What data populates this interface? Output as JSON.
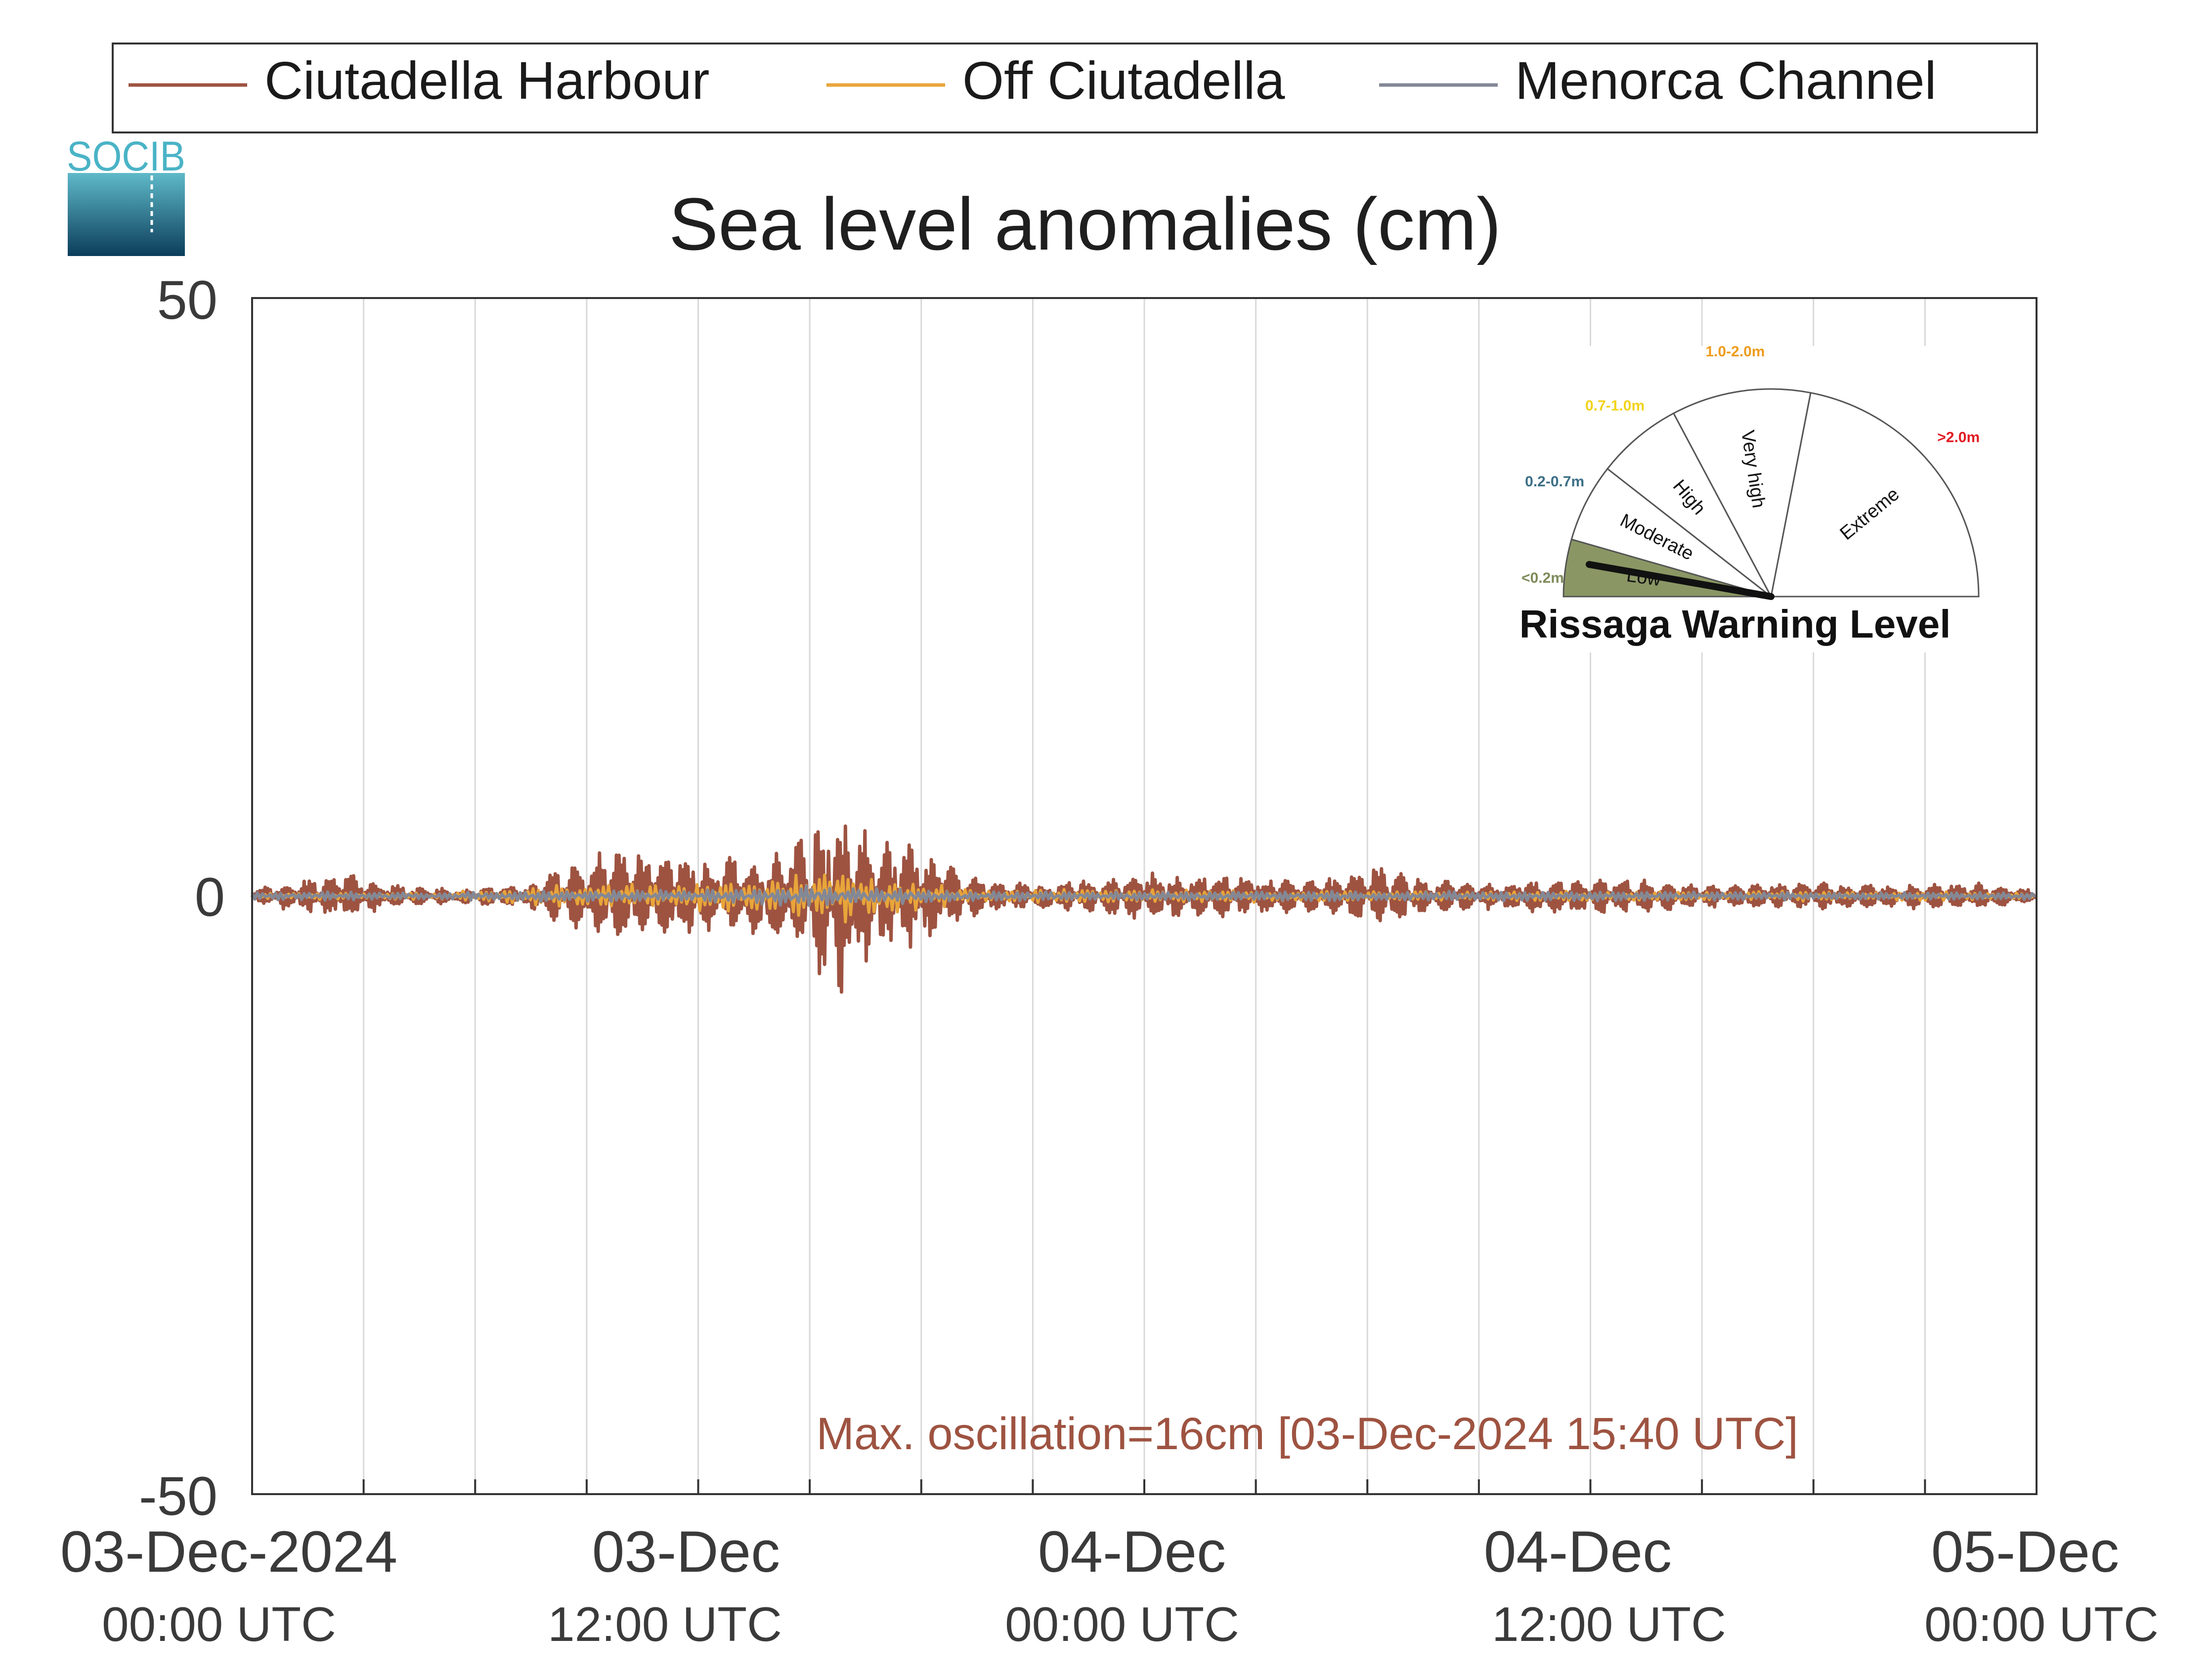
{
  "logo": {
    "text": "SOCIB"
  },
  "legend": {
    "placement": "top",
    "entries": [
      {
        "label": "Ciutadella Harbour",
        "color": "#9e5341"
      },
      {
        "label": "Off Ciutadella",
        "color": "#e8a53a"
      },
      {
        "label": "Menorca Channel",
        "color": "#838896"
      }
    ]
  },
  "chart_data": {
    "type": "line",
    "title": "Sea level anomalies (cm)",
    "xlabel": "",
    "ylabel": "",
    "ylim": [
      -50,
      50
    ],
    "y_ticks": [
      "50",
      "0",
      "-50"
    ],
    "xlim": [
      "2024-12-03 00:00 UTC",
      "2024-12-05 00:00 UTC"
    ],
    "x_ticks": [
      {
        "line1": "03-Dec-2024",
        "line2": "00:00 UTC"
      },
      {
        "line1": "03-Dec",
        "line2": "12:00 UTC"
      },
      {
        "line1": "04-Dec",
        "line2": "00:00 UTC"
      },
      {
        "line1": "04-Dec",
        "line2": "12:00 UTC"
      },
      {
        "line1": "05-Dec",
        "line2": "00:00 UTC"
      }
    ],
    "grid": "vertical, every 3 hours",
    "series": [
      {
        "name": "Ciutadella Harbour",
        "color": "#9e5341",
        "x_hours": [
          0,
          2.5,
          3.5,
          5.5,
          7.5,
          9.5,
          11,
          12.5,
          14.5,
          15.7,
          16.5,
          18,
          19.5,
          21,
          23,
          25,
          27,
          29,
          30.5,
          31.5,
          33,
          36,
          39,
          42,
          44.5,
          46.5,
          48
        ],
        "amplitude_cm": [
          0.5,
          2,
          1,
          0.5,
          1,
          4,
          3.5,
          3,
          4,
          8,
          5,
          4,
          1.5,
          1,
          1.5,
          2,
          1.5,
          1.5,
          2.5,
          1.5,
          1,
          1.5,
          1,
          1,
          1,
          1,
          0.5
        ]
      },
      {
        "name": "Off Ciutadella",
        "color": "#e8a53a",
        "x_hours": [
          0,
          5,
          9,
          11,
          14,
          15.7,
          17,
          19.5,
          23,
          27,
          31,
          36,
          42,
          48
        ],
        "amplitude_cm": [
          0.3,
          0.3,
          1,
          1,
          1.5,
          2.5,
          1.5,
          0.5,
          0.6,
          0.5,
          0.4,
          0.4,
          0.4,
          0.3
        ]
      },
      {
        "name": "Menorca Channel",
        "color": "#838896",
        "x_hours": [
          0,
          5,
          9,
          11,
          14,
          15.7,
          17,
          19.5,
          23,
          27,
          31,
          36,
          42,
          48
        ],
        "amplitude_cm": [
          0.4,
          0.3,
          0.5,
          0.5,
          0.7,
          0.8,
          0.7,
          0.4,
          0.4,
          0.4,
          0.4,
          0.4,
          0.3,
          0.3
        ]
      }
    ],
    "annotation": {
      "text": "Max. oscillation=16cm [03-Dec-2024 15:40 UTC]",
      "color": "#9e5341"
    }
  },
  "gauge": {
    "title": "Rissaga Warning Level",
    "current_level": "Low",
    "segments": [
      {
        "name": "Low",
        "range": "<0.2m",
        "range_color": "#7e8b59",
        "fill": "#8a9764"
      },
      {
        "name": "Moderate",
        "range": "0.2-0.7m",
        "range_color": "#3c6f87",
        "fill": "#ffffff"
      },
      {
        "name": "High",
        "range": "0.7-1.0m",
        "range_color": "#f2d31b",
        "fill": "#ffffff"
      },
      {
        "name": "Very high",
        "range": "1.0-2.0m",
        "range_color": "#ef9c1c",
        "fill": "#ffffff"
      },
      {
        "name": "Extreme",
        "range": ">2.0m",
        "range_color": "#e01c24",
        "fill": "#ffffff"
      }
    ]
  }
}
